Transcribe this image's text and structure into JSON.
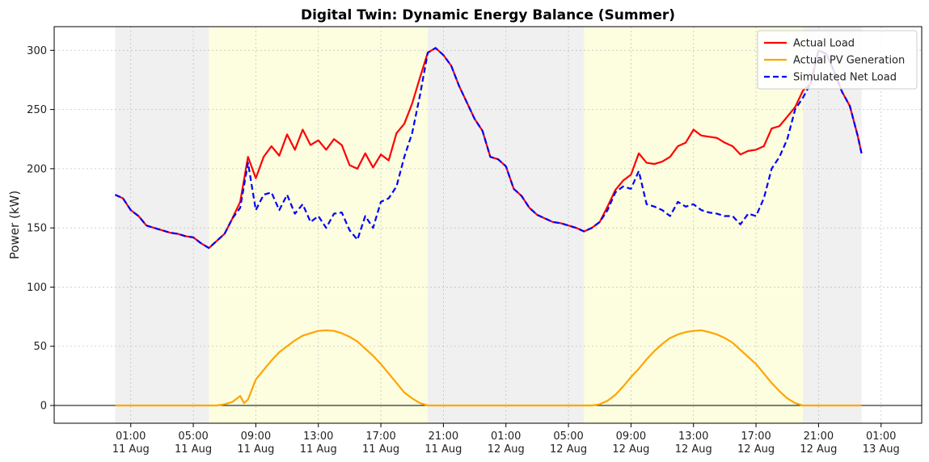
{
  "chart_data": {
    "type": "line",
    "title": "Digital Twin: Dynamic Energy Balance (Summer)",
    "xlabel": "",
    "ylabel": "Power (kW)",
    "ylim": [
      -15,
      320
    ],
    "yticks": [
      0,
      50,
      100,
      150,
      200,
      250,
      300
    ],
    "xlim_hours": [
      -3.9,
      51.6
    ],
    "xtick_labels": [
      [
        "01:00",
        "11 Aug"
      ],
      [
        "05:00",
        "11 Aug"
      ],
      [
        "09:00",
        "11 Aug"
      ],
      [
        "13:00",
        "11 Aug"
      ],
      [
        "17:00",
        "11 Aug"
      ],
      [
        "21:00",
        "11 Aug"
      ],
      [
        "01:00",
        "12 Aug"
      ],
      [
        "05:00",
        "12 Aug"
      ],
      [
        "09:00",
        "12 Aug"
      ],
      [
        "13:00",
        "12 Aug"
      ],
      [
        "17:00",
        "12 Aug"
      ],
      [
        "21:00",
        "12 Aug"
      ],
      [
        "01:00",
        "13 Aug"
      ]
    ],
    "xtick_hours": [
      1,
      5,
      9,
      13,
      17,
      21,
      25,
      29,
      33,
      37,
      41,
      45,
      49
    ],
    "grid": true,
    "legend": "top-right",
    "shaded_regions": [
      {
        "start": 0,
        "end": 6,
        "kind": "night",
        "color": "#f0f0f0"
      },
      {
        "start": 6,
        "end": 20,
        "kind": "day",
        "color": "#fdfde0"
      },
      {
        "start": 20,
        "end": 30,
        "kind": "night",
        "color": "#f0f0f0"
      },
      {
        "start": 30,
        "end": 44,
        "kind": "day",
        "color": "#fdfde0"
      },
      {
        "start": 44,
        "end": 47.75,
        "kind": "night",
        "color": "#f0f0f0"
      }
    ],
    "series": [
      {
        "name": "Actual Load",
        "color": "#ff0000",
        "style": "solid",
        "points": [
          [
            0,
            178
          ],
          [
            0.5,
            175
          ],
          [
            1,
            165
          ],
          [
            1.5,
            160
          ],
          [
            2,
            152
          ],
          [
            2.5,
            150
          ],
          [
            3,
            148
          ],
          [
            3.5,
            146
          ],
          [
            4,
            145
          ],
          [
            4.5,
            143
          ],
          [
            5,
            142
          ],
          [
            5.5,
            137
          ],
          [
            6,
            133
          ],
          [
            6.5,
            139
          ],
          [
            7,
            145
          ],
          [
            7.5,
            158
          ],
          [
            8,
            172
          ],
          [
            8.5,
            210
          ],
          [
            9,
            192
          ],
          [
            9.5,
            210
          ],
          [
            10,
            219
          ],
          [
            10.5,
            211
          ],
          [
            11,
            229
          ],
          [
            11.5,
            216
          ],
          [
            12,
            233
          ],
          [
            12.5,
            220
          ],
          [
            13,
            224
          ],
          [
            13.5,
            216
          ],
          [
            14,
            225
          ],
          [
            14.5,
            220
          ],
          [
            15,
            203
          ],
          [
            15.5,
            200
          ],
          [
            16,
            213
          ],
          [
            16.5,
            201
          ],
          [
            17,
            212
          ],
          [
            17.5,
            207
          ],
          [
            18,
            230
          ],
          [
            18.5,
            238
          ],
          [
            19,
            255
          ],
          [
            19.5,
            277
          ],
          [
            20,
            298
          ],
          [
            20.5,
            302
          ],
          [
            21,
            296
          ],
          [
            21.5,
            287
          ],
          [
            22,
            270
          ],
          [
            22.5,
            256
          ],
          [
            23,
            242
          ],
          [
            23.5,
            232
          ],
          [
            24,
            210
          ],
          [
            24.5,
            208
          ],
          [
            25,
            202
          ],
          [
            25.5,
            183
          ],
          [
            26,
            177
          ],
          [
            26.5,
            167
          ],
          [
            27,
            161
          ],
          [
            27.5,
            158
          ],
          [
            28,
            155
          ],
          [
            28.5,
            154
          ],
          [
            29,
            152
          ],
          [
            29.5,
            150
          ],
          [
            30,
            147
          ],
          [
            30.5,
            150
          ],
          [
            31,
            155
          ],
          [
            31.5,
            168
          ],
          [
            32,
            182
          ],
          [
            32.5,
            190
          ],
          [
            33,
            195
          ],
          [
            33.5,
            213
          ],
          [
            34,
            205
          ],
          [
            34.5,
            204
          ],
          [
            35,
            206
          ],
          [
            35.5,
            210
          ],
          [
            36,
            219
          ],
          [
            36.5,
            222
          ],
          [
            37,
            233
          ],
          [
            37.5,
            228
          ],
          [
            38,
            227
          ],
          [
            38.5,
            226
          ],
          [
            39,
            222
          ],
          [
            39.5,
            219
          ],
          [
            40,
            212
          ],
          [
            40.5,
            215
          ],
          [
            41,
            216
          ],
          [
            41.5,
            219
          ],
          [
            42,
            234
          ],
          [
            42.5,
            236
          ],
          [
            43,
            244
          ],
          [
            43.5,
            252
          ],
          [
            44,
            266
          ],
          [
            44.5,
            272
          ],
          [
            45,
            300
          ],
          [
            45.5,
            297
          ],
          [
            46,
            282
          ],
          [
            46.5,
            265
          ],
          [
            47,
            253
          ],
          [
            47.5,
            228
          ],
          [
            47.75,
            213
          ]
        ]
      },
      {
        "name": "Actual PV Generation",
        "color": "#ffa500",
        "style": "solid",
        "points": [
          [
            0,
            0
          ],
          [
            6.5,
            0
          ],
          [
            7,
            1
          ],
          [
            7.5,
            3
          ],
          [
            8,
            8
          ],
          [
            8.25,
            2
          ],
          [
            8.5,
            5
          ],
          [
            9,
            22
          ],
          [
            9.5,
            30
          ],
          [
            10,
            38
          ],
          [
            10.5,
            45
          ],
          [
            11,
            50
          ],
          [
            11.5,
            55
          ],
          [
            12,
            59
          ],
          [
            12.5,
            61
          ],
          [
            13,
            63
          ],
          [
            13.5,
            63.5
          ],
          [
            14,
            63
          ],
          [
            14.5,
            61
          ],
          [
            15,
            58
          ],
          [
            15.5,
            54
          ],
          [
            16,
            48
          ],
          [
            16.5,
            42
          ],
          [
            17,
            35
          ],
          [
            17.5,
            27
          ],
          [
            18,
            19
          ],
          [
            18.5,
            11
          ],
          [
            19,
            6
          ],
          [
            19.5,
            2
          ],
          [
            20,
            0
          ],
          [
            30.5,
            0
          ],
          [
            31,
            1
          ],
          [
            31.5,
            4
          ],
          [
            32,
            9
          ],
          [
            32.5,
            16
          ],
          [
            33,
            24
          ],
          [
            33.5,
            31
          ],
          [
            34,
            39
          ],
          [
            34.5,
            46
          ],
          [
            35,
            52
          ],
          [
            35.5,
            57
          ],
          [
            36,
            60
          ],
          [
            36.5,
            62
          ],
          [
            37,
            63
          ],
          [
            37.5,
            63.5
          ],
          [
            38,
            62
          ],
          [
            38.5,
            60
          ],
          [
            39,
            57
          ],
          [
            39.5,
            53
          ],
          [
            40,
            47
          ],
          [
            40.5,
            41
          ],
          [
            41,
            35
          ],
          [
            41.5,
            27
          ],
          [
            42,
            19
          ],
          [
            42.5,
            12
          ],
          [
            43,
            6
          ],
          [
            43.5,
            2
          ],
          [
            44,
            0
          ],
          [
            47.75,
            0
          ]
        ]
      },
      {
        "name": "Simulated Net Load",
        "color": "#0000ff",
        "style": "dashed",
        "points": [
          [
            0,
            178
          ],
          [
            0.5,
            175
          ],
          [
            1,
            165
          ],
          [
            1.5,
            160
          ],
          [
            2,
            152
          ],
          [
            2.5,
            150
          ],
          [
            3,
            148
          ],
          [
            3.5,
            146
          ],
          [
            4,
            145
          ],
          [
            4.5,
            143
          ],
          [
            5,
            142
          ],
          [
            5.5,
            137
          ],
          [
            6,
            133
          ],
          [
            6.5,
            139
          ],
          [
            7,
            145
          ],
          [
            7.5,
            158
          ],
          [
            8,
            167
          ],
          [
            8.5,
            205
          ],
          [
            9,
            165
          ],
          [
            9.5,
            178
          ],
          [
            10,
            180
          ],
          [
            10.5,
            165
          ],
          [
            11,
            178
          ],
          [
            11.5,
            162
          ],
          [
            12,
            170
          ],
          [
            12.5,
            155
          ],
          [
            13,
            160
          ],
          [
            13.5,
            150
          ],
          [
            14,
            162
          ],
          [
            14.5,
            163
          ],
          [
            15,
            148
          ],
          [
            15.5,
            140
          ],
          [
            16,
            160
          ],
          [
            16.5,
            150
          ],
          [
            17,
            172
          ],
          [
            17.5,
            175
          ],
          [
            18,
            185
          ],
          [
            18.5,
            210
          ],
          [
            19,
            230
          ],
          [
            19.5,
            262
          ],
          [
            20,
            298
          ],
          [
            20.5,
            302
          ],
          [
            21,
            296
          ],
          [
            21.5,
            287
          ],
          [
            22,
            270
          ],
          [
            22.5,
            256
          ],
          [
            23,
            242
          ],
          [
            23.5,
            232
          ],
          [
            24,
            210
          ],
          [
            24.5,
            208
          ],
          [
            25,
            202
          ],
          [
            25.5,
            183
          ],
          [
            26,
            177
          ],
          [
            26.5,
            167
          ],
          [
            27,
            161
          ],
          [
            27.5,
            158
          ],
          [
            28,
            155
          ],
          [
            28.5,
            154
          ],
          [
            29,
            152
          ],
          [
            29.5,
            150
          ],
          [
            30,
            147
          ],
          [
            30.5,
            150
          ],
          [
            31,
            155
          ],
          [
            31.5,
            165
          ],
          [
            32,
            180
          ],
          [
            32.5,
            185
          ],
          [
            33,
            183
          ],
          [
            33.5,
            198
          ],
          [
            34,
            170
          ],
          [
            34.5,
            168
          ],
          [
            35,
            165
          ],
          [
            35.5,
            160
          ],
          [
            36,
            172
          ],
          [
            36.5,
            168
          ],
          [
            37,
            170
          ],
          [
            37.5,
            165
          ],
          [
            38,
            163
          ],
          [
            38.5,
            162
          ],
          [
            39,
            160
          ],
          [
            39.5,
            160
          ],
          [
            40,
            153
          ],
          [
            40.5,
            162
          ],
          [
            41,
            160
          ],
          [
            41.5,
            175
          ],
          [
            42,
            200
          ],
          [
            42.5,
            210
          ],
          [
            43,
            225
          ],
          [
            43.5,
            250
          ],
          [
            44,
            260
          ],
          [
            44.5,
            272
          ],
          [
            45,
            300
          ],
          [
            45.5,
            297
          ],
          [
            46,
            282
          ],
          [
            46.5,
            265
          ],
          [
            47,
            253
          ],
          [
            47.5,
            228
          ],
          [
            47.75,
            213
          ]
        ]
      }
    ],
    "reference_line": {
      "y": 0,
      "color": "#000000"
    }
  }
}
